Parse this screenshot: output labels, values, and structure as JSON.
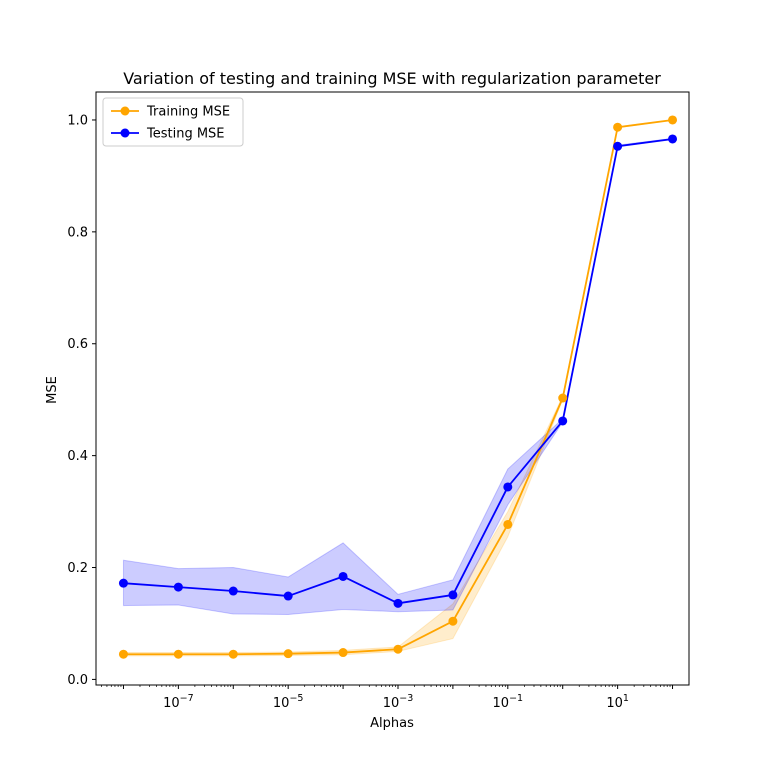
{
  "chart_data": {
    "type": "line",
    "title": "Variation of testing and training MSE with regularization parameter",
    "xlabel": "Alphas",
    "ylabel": "MSE",
    "xscale": "log",
    "xlim_exp": [
      -8.5,
      2.3
    ],
    "ylim": [
      -0.01,
      1.05
    ],
    "x": [
      1e-08,
      1e-07,
      1e-06,
      1e-05,
      0.0001,
      0.001,
      0.01,
      0.1,
      1,
      10,
      100
    ],
    "xticks": [
      {
        "base": "10",
        "exp": "−7"
      },
      {
        "base": "10",
        "exp": "−5"
      },
      {
        "base": "10",
        "exp": "−3"
      },
      {
        "base": "10",
        "exp": "−1"
      },
      {
        "base": "10",
        "exp": "1"
      }
    ],
    "yticks": [
      "0.0",
      "0.2",
      "0.4",
      "0.6",
      "0.8",
      "1.0"
    ],
    "legend": {
      "position": "upper-left"
    },
    "grid": false,
    "series": [
      {
        "name": "Training MSE",
        "color": "#ffa500",
        "values": [
          0.045,
          0.045,
          0.045,
          0.046,
          0.048,
          0.054,
          0.104,
          0.277,
          0.503,
          0.987,
          1.0
        ],
        "lower": [
          0.042,
          0.042,
          0.042,
          0.043,
          0.044,
          0.05,
          0.073,
          0.255,
          0.5,
          0.986,
          1.0
        ],
        "upper": [
          0.048,
          0.048,
          0.048,
          0.049,
          0.052,
          0.058,
          0.135,
          0.3,
          0.506,
          0.988,
          1.0
        ]
      },
      {
        "name": "Testing MSE",
        "color": "#0000ff",
        "values": [
          0.172,
          0.165,
          0.158,
          0.149,
          0.184,
          0.136,
          0.151,
          0.344,
          0.462,
          0.953,
          0.966
        ],
        "lower": [
          0.132,
          0.133,
          0.117,
          0.116,
          0.125,
          0.121,
          0.124,
          0.312,
          0.46,
          0.952,
          0.965
        ],
        "upper": [
          0.213,
          0.198,
          0.2,
          0.183,
          0.244,
          0.152,
          0.178,
          0.376,
          0.466,
          0.955,
          0.967
        ]
      }
    ]
  }
}
